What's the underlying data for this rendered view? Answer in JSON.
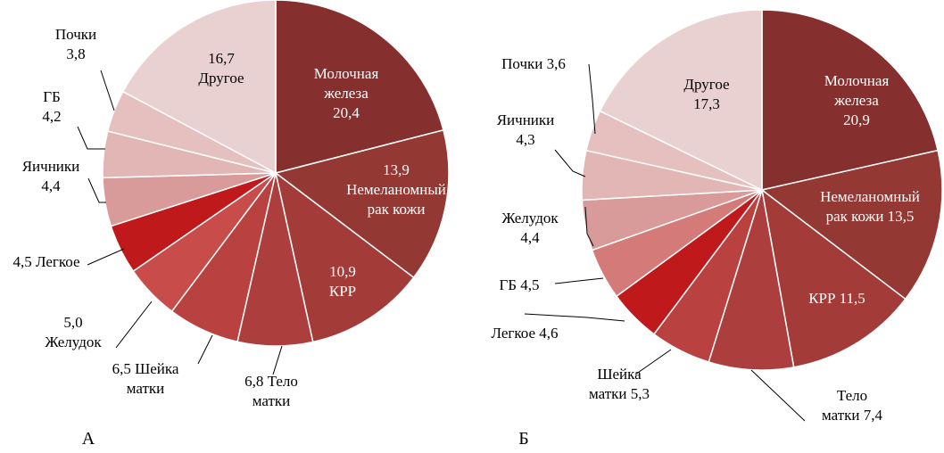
{
  "chart_data": [
    {
      "type": "pie",
      "panel_label": "А",
      "slices": [
        {
          "label_lines": [
            "Молочная",
            "железа",
            "20,4"
          ],
          "value": 20.4,
          "color": "#85302e",
          "label_color": "#ffffff"
        },
        {
          "label_lines": [
            "13,9",
            "Немеланомный",
            "рак кожи"
          ],
          "value": 13.9,
          "color": "#943834",
          "label_color": "#ffffff"
        },
        {
          "label_lines": [
            "10,9",
            "КРР"
          ],
          "value": 10.9,
          "color": "#a33c39",
          "label_color": "#ffffff"
        },
        {
          "label_lines": [
            "6,8 Тело",
            "матки"
          ],
          "value": 6.8,
          "color": "#ac3f3d",
          "label_color": "#000000"
        },
        {
          "label_lines": [
            "6,5 Шейка",
            "матки"
          ],
          "value": 6.5,
          "color": "#b9413f",
          "label_color": "#000000"
        },
        {
          "label_lines": [
            "5,0",
            "Желудок"
          ],
          "value": 5.0,
          "color": "#c74c4a",
          "label_color": "#000000"
        },
        {
          "label_lines": [
            "4,5 Легкое"
          ],
          "value": 4.5,
          "color": "#c0191b",
          "label_color": "#000000"
        },
        {
          "label_lines": [
            "Яичники",
            "4,4"
          ],
          "value": 4.4,
          "color": "#d99b9a",
          "label_color": "#000000"
        },
        {
          "label_lines": [
            "ГБ",
            "4,2"
          ],
          "value": 4.2,
          "color": "#e2b6b4",
          "label_color": "#000000"
        },
        {
          "label_lines": [
            "Почки",
            "3,8"
          ],
          "value": 3.8,
          "color": "#e6c0bf",
          "label_color": "#000000"
        },
        {
          "label_lines": [
            "16,7",
            "Другое"
          ],
          "value": 16.7,
          "color": "#ead1d1",
          "label_color": "#000000"
        }
      ]
    },
    {
      "type": "pie",
      "panel_label": "Б",
      "slices": [
        {
          "label_lines": [
            "Молочная",
            "железа",
            "20,9"
          ],
          "value": 20.9,
          "color": "#85302e",
          "label_color": "#ffffff"
        },
        {
          "label_lines": [
            "Немеланомный",
            "рак кожи 13,5"
          ],
          "value": 13.5,
          "color": "#943834",
          "label_color": "#ffffff"
        },
        {
          "label_lines": [
            "КРР 11,5"
          ],
          "value": 11.5,
          "color": "#a33c39",
          "label_color": "#ffffff"
        },
        {
          "label_lines": [
            "Тело",
            "матки 7,4"
          ],
          "value": 7.4,
          "color": "#ac3f3d",
          "label_color": "#000000"
        },
        {
          "label_lines": [
            "Шейка",
            "матки 5,3"
          ],
          "value": 5.3,
          "color": "#b9413f",
          "label_color": "#000000"
        },
        {
          "label_lines": [
            "Легкое 4,6"
          ],
          "value": 4.6,
          "color": "#c0191b",
          "label_color": "#000000"
        },
        {
          "label_lines": [
            "ГБ 4,5"
          ],
          "value": 4.5,
          "color": "#d47a79",
          "label_color": "#000000"
        },
        {
          "label_lines": [
            "Желудок",
            "4,4"
          ],
          "value": 4.4,
          "color": "#d99b9a",
          "label_color": "#000000"
        },
        {
          "label_lines": [
            "Яичники",
            "4,3"
          ],
          "value": 4.3,
          "color": "#e2b6b4",
          "label_color": "#000000"
        },
        {
          "label_lines": [
            "Почки 3,6"
          ],
          "value": 3.6,
          "color": "#e6c0bf",
          "label_color": "#000000"
        },
        {
          "label_lines": [
            "Другое",
            "17,3"
          ],
          "value": 17.3,
          "color": "#ead1d1",
          "label_color": "#000000"
        }
      ]
    }
  ]
}
